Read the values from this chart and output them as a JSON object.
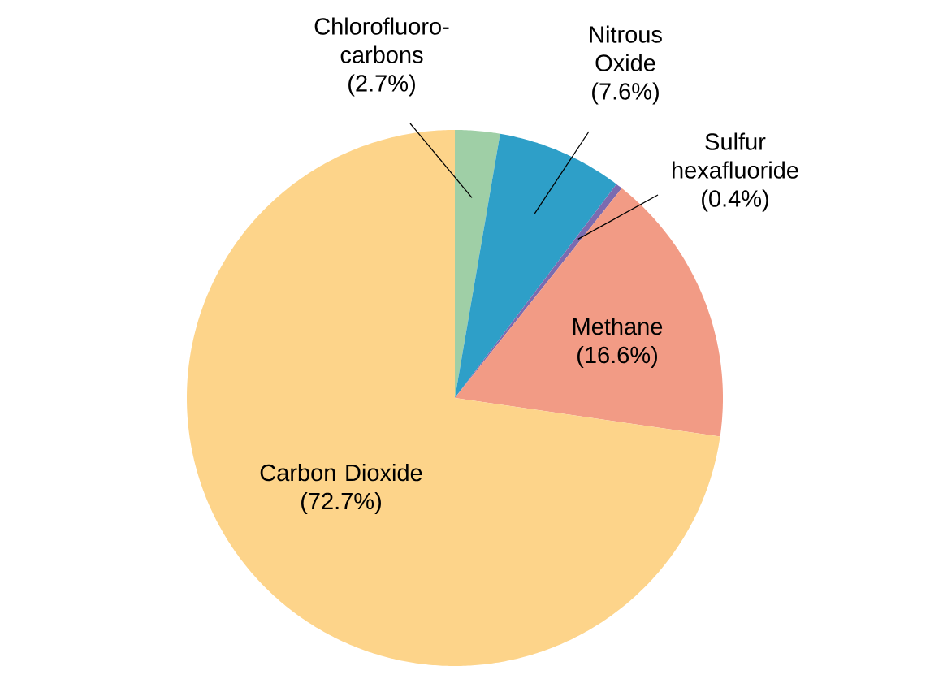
{
  "chart_data": {
    "type": "pie",
    "categories": [
      "Chlorofluoro-carbons",
      "Nitrous Oxide",
      "Sulfur hexafluoride",
      "Methane",
      "Carbon Dioxide"
    ],
    "values": [
      2.7,
      7.6,
      0.4,
      16.6,
      72.7
    ],
    "colors": [
      "#9fcfa6",
      "#2e9fc8",
      "#7b6bb0",
      "#f29b85",
      "#fdd48a"
    ],
    "value_labels": [
      "(2.7%)",
      "(7.6%)",
      "(0.4%)",
      "(16.6%)",
      "(72.7%)"
    ]
  }
}
